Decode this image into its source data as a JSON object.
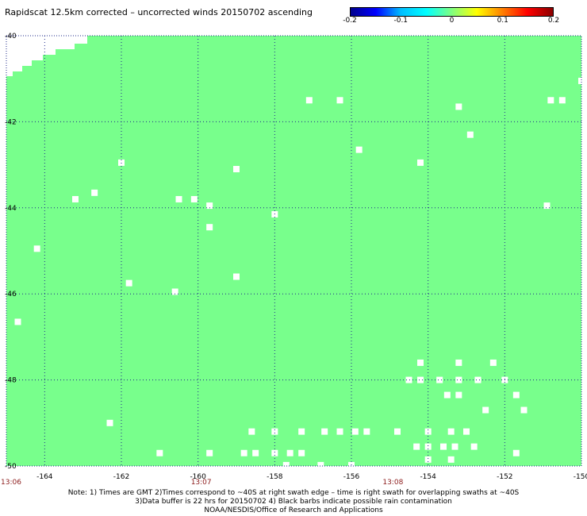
{
  "title": "Rapidscat 12.5km corrected – uncorrected winds 20150702 ascending",
  "colorbar": {
    "ticks": [
      "-0.2",
      "-0.1",
      "0",
      "0.1",
      "0.2"
    ],
    "colors": [
      "#00008b",
      "#0000ff",
      "#00bfff",
      "#00ffff",
      "#80ff80",
      "#ffff00",
      "#ff8000",
      "#ff0000",
      "#8b0000"
    ]
  },
  "field_color": "#78ff8c",
  "chart_data": {
    "type": "heatmap",
    "title": "Rapidscat 12.5km corrected – uncorrected winds 20150702 ascending",
    "xlim": [
      -165,
      -150
    ],
    "ylim": [
      -50,
      -40
    ],
    "x_ticks": [
      "-164",
      "-162",
      "-160",
      "-158",
      "-156",
      "-154",
      "-152",
      "-150"
    ],
    "y_ticks": [
      "-40",
      "-42",
      "-44",
      "-46",
      "-48",
      "-50"
    ],
    "grid": true,
    "times": [
      {
        "label": "13:06",
        "lon": -165
      },
      {
        "label": "13:07",
        "lon": -160
      },
      {
        "label": "13:08",
        "lon": -155
      }
    ],
    "field_value": 0,
    "no_data_corner": "top-left",
    "missing_cells": [
      [
        -157.1,
        -41.5
      ],
      [
        -156.3,
        -41.5
      ],
      [
        -153.2,
        -41.65
      ],
      [
        -150.8,
        -41.5
      ],
      [
        -150.5,
        -41.5
      ],
      [
        -150.0,
        -41.05
      ],
      [
        -152.9,
        -42.3
      ],
      [
        -155.8,
        -42.65
      ],
      [
        -154.2,
        -42.95
      ],
      [
        -162.0,
        -42.95
      ],
      [
        -159.0,
        -43.1
      ],
      [
        -163.2,
        -43.8
      ],
      [
        -162.7,
        -43.65
      ],
      [
        -160.5,
        -43.8
      ],
      [
        -160.1,
        -43.8
      ],
      [
        -159.7,
        -43.95
      ],
      [
        -158.0,
        -44.15
      ],
      [
        -150.9,
        -43.95
      ],
      [
        -159.7,
        -44.45
      ],
      [
        -164.2,
        -44.95
      ],
      [
        -161.8,
        -45.75
      ],
      [
        -160.6,
        -45.95
      ],
      [
        -159.0,
        -45.6
      ],
      [
        -164.7,
        -46.65
      ],
      [
        -154.2,
        -47.6
      ],
      [
        -153.2,
        -47.6
      ],
      [
        -152.3,
        -47.6
      ],
      [
        -154.5,
        -48.0
      ],
      [
        -154.2,
        -48.0
      ],
      [
        -153.7,
        -48.0
      ],
      [
        -153.2,
        -48.0
      ],
      [
        -152.7,
        -48.0
      ],
      [
        -152.0,
        -48.0
      ],
      [
        -153.5,
        -48.35
      ],
      [
        -153.2,
        -48.35
      ],
      [
        -151.7,
        -48.35
      ],
      [
        -152.5,
        -48.7
      ],
      [
        -151.5,
        -48.7
      ],
      [
        -162.3,
        -49.0
      ],
      [
        -158.6,
        -49.2
      ],
      [
        -158.0,
        -49.2
      ],
      [
        -157.3,
        -49.2
      ],
      [
        -156.7,
        -49.2
      ],
      [
        -156.3,
        -49.2
      ],
      [
        -155.9,
        -49.2
      ],
      [
        -155.6,
        -49.2
      ],
      [
        -154.8,
        -49.2
      ],
      [
        -154.0,
        -49.2
      ],
      [
        -153.4,
        -49.2
      ],
      [
        -153.0,
        -49.2
      ],
      [
        -154.3,
        -49.55
      ],
      [
        -154.0,
        -49.55
      ],
      [
        -153.6,
        -49.55
      ],
      [
        -153.3,
        -49.55
      ],
      [
        -152.8,
        -49.55
      ],
      [
        -161.0,
        -49.7
      ],
      [
        -159.7,
        -49.7
      ],
      [
        -158.8,
        -49.7
      ],
      [
        -158.5,
        -49.7
      ],
      [
        -158.0,
        -49.7
      ],
      [
        -157.6,
        -49.7
      ],
      [
        -157.3,
        -49.7
      ],
      [
        -151.7,
        -49.7
      ],
      [
        -154.0,
        -49.85
      ],
      [
        -153.4,
        -49.85
      ],
      [
        -157.7,
        -49.98
      ],
      [
        -156.8,
        -49.98
      ],
      [
        -156.0,
        -49.98
      ]
    ]
  },
  "notes": [
    "Note: 1) Times are GMT 2)Times correspond to ~40S at right swath edge – time is right swath for overlapping swaths at ~40S",
    "3)Data buffer is 22 hrs for 20150702 4) Black barbs indicate possible rain contamination",
    "NOAA/NESDIS/Office of Research and Applications"
  ]
}
